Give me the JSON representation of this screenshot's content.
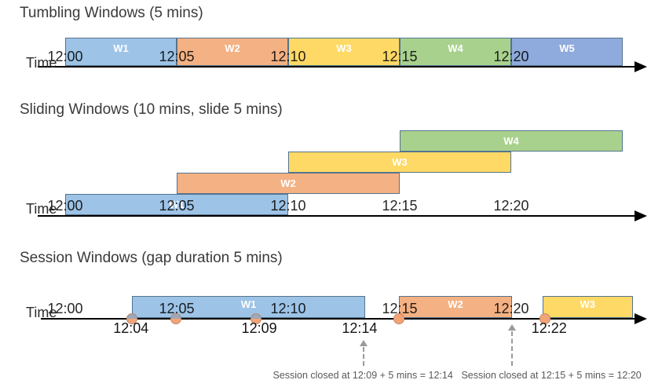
{
  "diagram": {
    "axis_color": "#000000",
    "block_border_color": "#54748E",
    "tick_text_color": "#262626",
    "window_label_color": "#ffffff",
    "event_dot_color": "#F2A478",
    "event_dot_shaded_top": "#9FA8B8",
    "annotation_color": "#595959",
    "dashed_arrow_color": "#9a9a9a",
    "palette": {
      "light_blue": "#9DC3E6",
      "orange": "#F4B183",
      "yellow": "#FFD966",
      "green": "#A9D18E",
      "royal_blue": "#8FAADC"
    }
  },
  "sections": [
    {
      "title": "Tumbling Windows (5 mins)",
      "time_label": "Time",
      "ticks": [
        {
          "min": 0,
          "label": "12:00"
        },
        {
          "min": 5,
          "label": "12:05"
        },
        {
          "min": 10,
          "label": "12:10"
        },
        {
          "min": 15,
          "label": "12:15"
        },
        {
          "min": 20,
          "label": "12:20"
        }
      ],
      "windows": [
        {
          "label": "W1",
          "start_min": 0,
          "end_min": 5,
          "color": "#9DC3E6",
          "row": 0
        },
        {
          "label": "W2",
          "start_min": 5,
          "end_min": 10,
          "color": "#F4B183",
          "row": 0
        },
        {
          "label": "W3",
          "start_min": 10,
          "end_min": 15,
          "color": "#FFD966",
          "row": 0
        },
        {
          "label": "W4",
          "start_min": 15,
          "end_min": 20,
          "color": "#A9D18E",
          "row": 0
        },
        {
          "label": "W5",
          "start_min": 20,
          "end_min": 25,
          "color": "#8FAADC",
          "row": 0
        }
      ]
    },
    {
      "title": "Sliding Windows (10 mins, slide 5 mins)",
      "time_label": "Time",
      "ticks": [
        {
          "min": 0,
          "label": "12:00"
        },
        {
          "min": 5,
          "label": "12:05"
        },
        {
          "min": 10,
          "label": "12:10"
        },
        {
          "min": 15,
          "label": "12:15"
        },
        {
          "min": 20,
          "label": "12:20"
        }
      ],
      "windows": [
        {
          "label": "W1",
          "start_min": 0,
          "end_min": 10,
          "color": "#9DC3E6",
          "row": 0
        },
        {
          "label": "W2",
          "start_min": 5,
          "end_min": 15,
          "color": "#F4B183",
          "row": 1
        },
        {
          "label": "W3",
          "start_min": 10,
          "end_min": 20,
          "color": "#FFD966",
          "row": 2
        },
        {
          "label": "W4",
          "start_min": 15,
          "end_min": 25,
          "color": "#A9D18E",
          "row": 3
        }
      ]
    },
    {
      "title": "Session Windows (gap duration 5 mins)",
      "time_label": "Time",
      "ticks": [
        {
          "min": 0,
          "label": "12:00"
        },
        {
          "min": 5,
          "label": "12:05"
        },
        {
          "min": 10,
          "label": "12:10"
        },
        {
          "min": 15,
          "label": "12:15"
        },
        {
          "min": 20,
          "label": "12:20"
        }
      ],
      "windows": [
        {
          "label": "W1",
          "start_min": 3.0,
          "end_min": 13.45,
          "color": "#9DC3E6",
          "row": 0
        },
        {
          "label": "W2",
          "start_min": 14.95,
          "end_min": 20.05,
          "color": "#F4B183",
          "row": 0
        },
        {
          "label": "W3",
          "start_min": 21.4,
          "end_min": 25.45,
          "color": "#FFD966",
          "row": 0
        }
      ],
      "events": [
        {
          "min": 3.0,
          "shaded": true
        },
        {
          "min": 4.95,
          "shaded": true
        },
        {
          "min": 8.55,
          "shaded": true
        },
        {
          "min": 14.95,
          "shaded": false
        },
        {
          "min": 21.5,
          "shaded": false
        }
      ],
      "event_labels": [
        {
          "min": 2.95,
          "text": "12:04"
        },
        {
          "min": 8.7,
          "text": "12:09"
        },
        {
          "min": 13.2,
          "text": "12:14"
        },
        {
          "min": 21.7,
          "text": "12:22"
        }
      ],
      "close_arrows": [
        {
          "min": 13.38
        },
        {
          "min": 20.03
        }
      ],
      "annotations": [
        {
          "center_min": 13.35,
          "text": "Session closed at 12:09 + 5 mins = 12:14"
        },
        {
          "center_min": 21.8,
          "text": "Session closed at 12:15 + 5 mins = 12:20"
        }
      ]
    }
  ]
}
